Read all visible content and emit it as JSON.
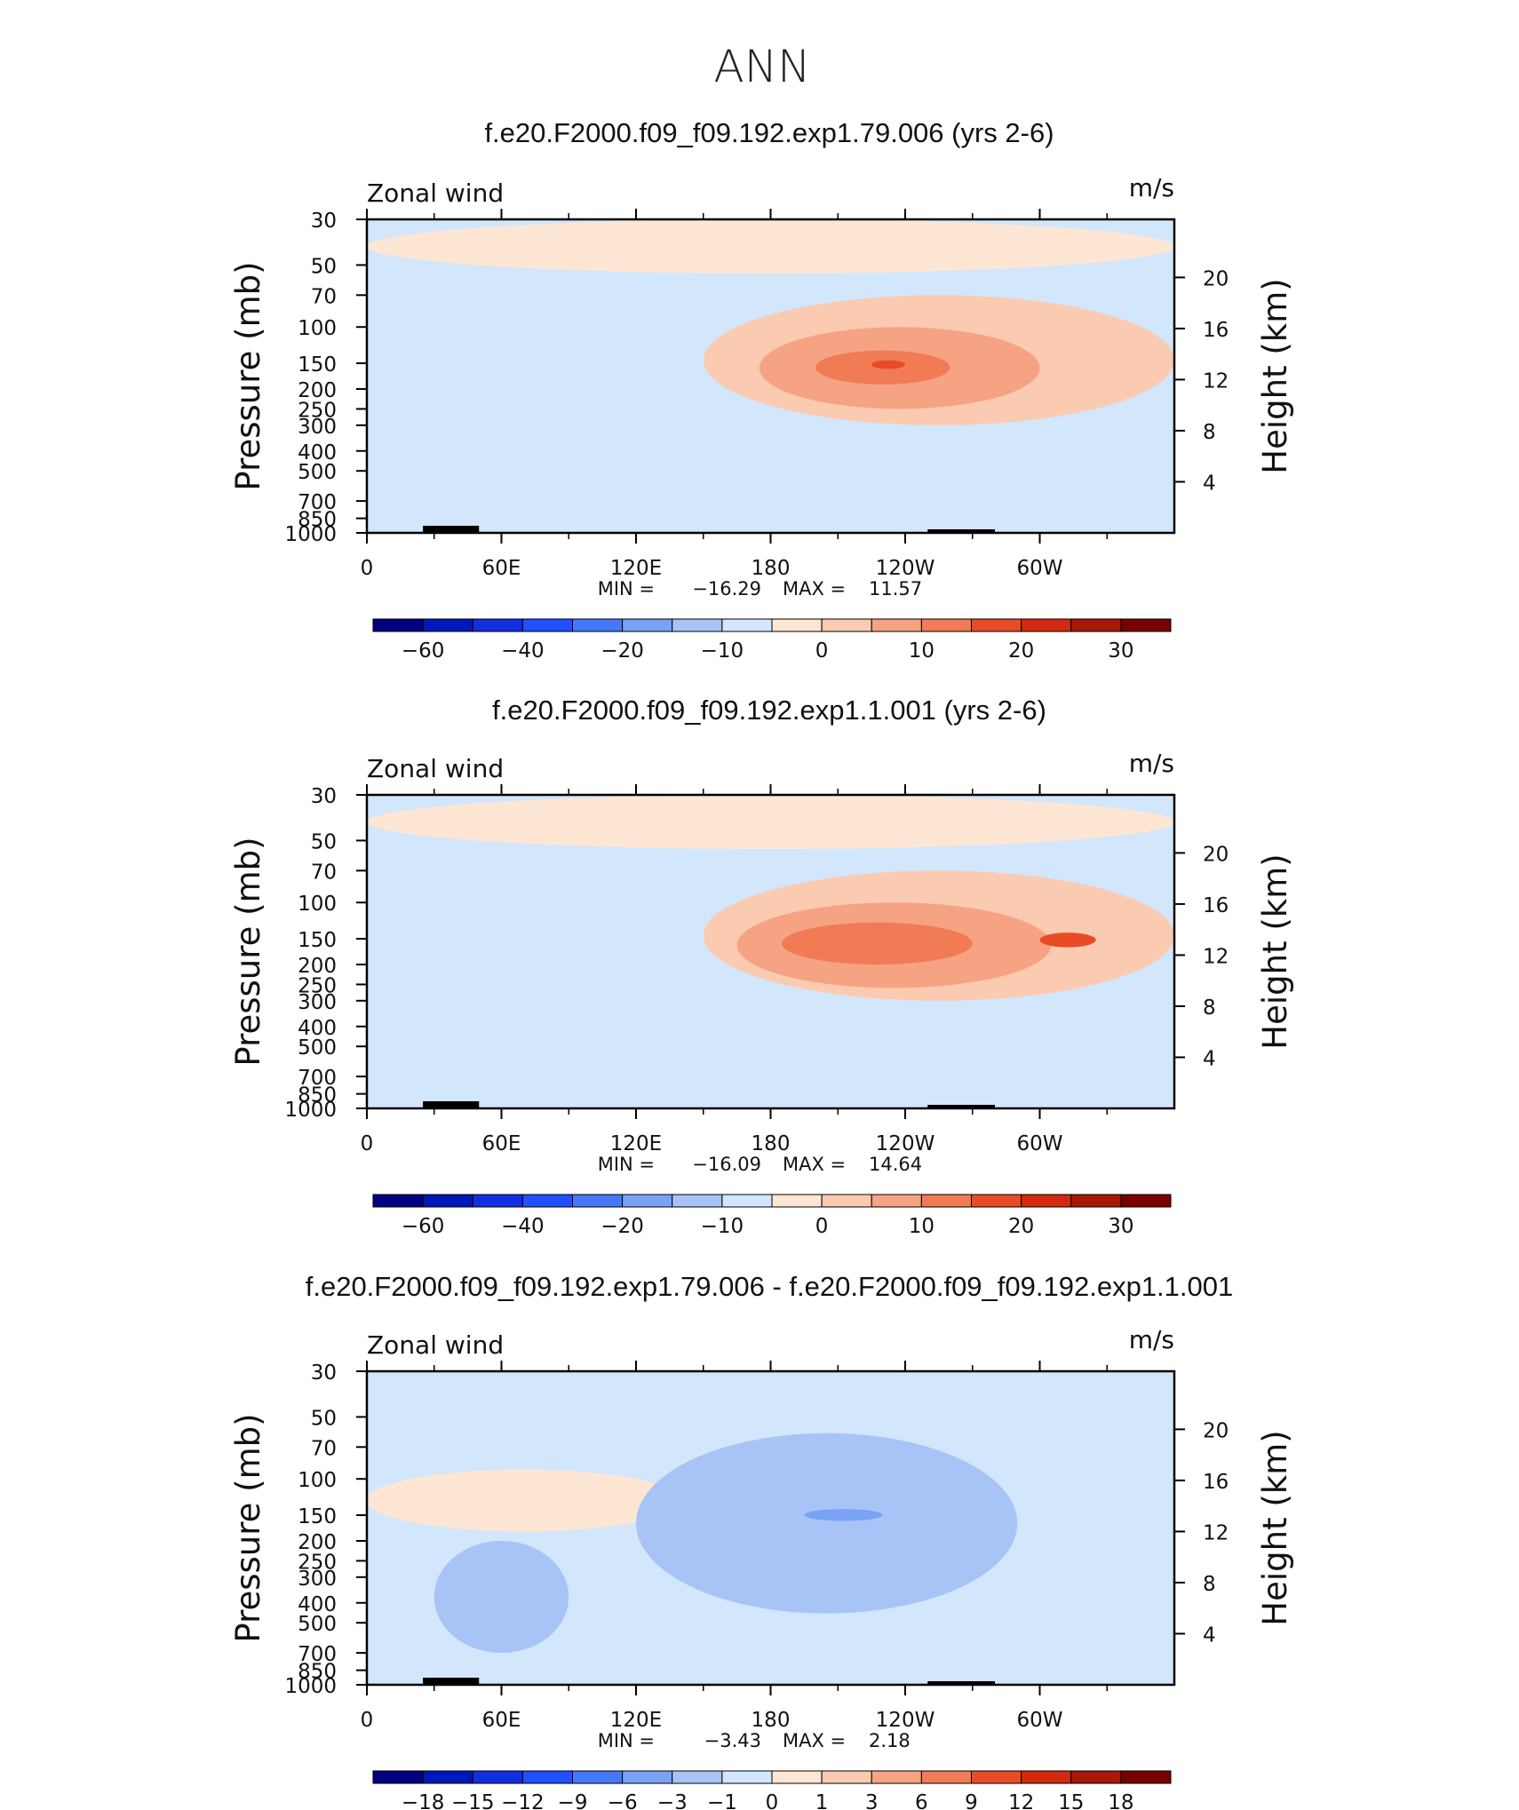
{
  "page_title": "ANN",
  "colors": {
    "field_levels": [
      "#000080",
      "#0018b8",
      "#1030e0",
      "#2050ff",
      "#4478f8",
      "#7aa2f4",
      "#a8c4f6",
      "#d2e6fc",
      "#fde6d3",
      "#fbcbb1",
      "#f6a383",
      "#f07b54",
      "#e84c24",
      "#d22a10",
      "#a81808",
      "#7a0000"
    ],
    "diff_levels": [
      "#000080",
      "#0018b8",
      "#1030e0",
      "#2050ff",
      "#4478f8",
      "#7aa2f4",
      "#a8c4f6",
      "#d2e6fc",
      "#fde6d3",
      "#fbcbb1",
      "#f6a383",
      "#f07b54",
      "#e84c24",
      "#d22a10",
      "#a81808",
      "#7a0000"
    ],
    "terrain": "#000000"
  },
  "chart_data": [
    {
      "type": "heatmap",
      "title": "f.e20.F2000.f09_f09.192.exp1.79.006 (yrs 2-6)",
      "variable": "Zonal wind",
      "units": "m/s",
      "ylabel": "Pressure (mb)",
      "ylabel_right": "Height (km)",
      "xlabel": "",
      "x_ticks": [
        "0",
        "60E",
        "120E",
        "180",
        "120W",
        "60W"
      ],
      "y_ticks": [
        "30",
        "50",
        "70",
        "100",
        "150",
        "200",
        "250",
        "300",
        "400",
        "500",
        "700",
        "850",
        "1000"
      ],
      "y_ticks_right": [
        "20",
        "16",
        "12",
        "8",
        "4"
      ],
      "ylim": [
        1000,
        30
      ],
      "xlim": [
        0,
        360
      ],
      "stats": {
        "min_label": "MIN =",
        "min": "−16.29",
        "max_label": "MAX =",
        "max": "11.57"
      },
      "colorbar_labels": [
        "−60",
        "−40",
        "−20",
        "−10",
        "0",
        "10",
        "20",
        "30"
      ],
      "features": [
        {
          "level": 8,
          "lon": [
            0,
            360
          ],
          "p": [
            30,
            55
          ]
        },
        {
          "level": 9,
          "lon": [
            150,
            360
          ],
          "p": [
            70,
            300
          ]
        },
        {
          "level": 10,
          "lon": [
            175,
            300
          ],
          "p": [
            100,
            250
          ]
        },
        {
          "level": 11,
          "lon": [
            200,
            260
          ],
          "p": [
            130,
            190
          ]
        },
        {
          "level": 12,
          "lon": [
            225,
            240
          ],
          "p": [
            145,
            160
          ]
        }
      ]
    },
    {
      "type": "heatmap",
      "title": "f.e20.F2000.f09_f09.192.exp1.1.001 (yrs 2-6)",
      "variable": "Zonal wind",
      "units": "m/s",
      "ylabel": "Pressure (mb)",
      "ylabel_right": "Height (km)",
      "xlabel": "",
      "x_ticks": [
        "0",
        "60E",
        "120E",
        "180",
        "120W",
        "60W"
      ],
      "y_ticks": [
        "30",
        "50",
        "70",
        "100",
        "150",
        "200",
        "250",
        "300",
        "400",
        "500",
        "700",
        "850",
        "1000"
      ],
      "y_ticks_right": [
        "20",
        "16",
        "12",
        "8",
        "4"
      ],
      "ylim": [
        1000,
        30
      ],
      "xlim": [
        0,
        360
      ],
      "stats": {
        "min_label": "MIN =",
        "min": "−16.09",
        "max_label": "MAX =",
        "max": "14.64"
      },
      "colorbar_labels": [
        "−60",
        "−40",
        "−20",
        "−10",
        "0",
        "10",
        "20",
        "30"
      ],
      "features": [
        {
          "level": 8,
          "lon": [
            0,
            360
          ],
          "p": [
            30,
            55
          ]
        },
        {
          "level": 9,
          "lon": [
            150,
            360
          ],
          "p": [
            70,
            300
          ]
        },
        {
          "level": 10,
          "lon": [
            165,
            305
          ],
          "p": [
            100,
            260
          ]
        },
        {
          "level": 11,
          "lon": [
            185,
            270
          ],
          "p": [
            125,
            200
          ]
        },
        {
          "level": 12,
          "lon": [
            300,
            325
          ],
          "p": [
            140,
            165
          ]
        }
      ]
    },
    {
      "type": "heatmap",
      "title": "f.e20.F2000.f09_f09.192.exp1.79.006 - f.e20.F2000.f09_f09.192.exp1.1.001",
      "variable": "Zonal wind",
      "units": "m/s",
      "ylabel": "Pressure (mb)",
      "ylabel_right": "Height (km)",
      "xlabel": "",
      "x_ticks": [
        "0",
        "60E",
        "120E",
        "180",
        "120W",
        "60W"
      ],
      "y_ticks": [
        "30",
        "50",
        "70",
        "100",
        "150",
        "200",
        "250",
        "300",
        "400",
        "500",
        "700",
        "850",
        "1000"
      ],
      "y_ticks_right": [
        "20",
        "16",
        "12",
        "8",
        "4"
      ],
      "ylim": [
        1000,
        30
      ],
      "xlim": [
        0,
        360
      ],
      "stats": {
        "min_label": "MIN =",
        "min": "−3.43",
        "max_label": "MAX =",
        "max": "2.18"
      },
      "colorbar_labels": [
        "−18",
        "−15",
        "−12",
        "−9",
        "−6",
        "−3",
        "−1",
        "0",
        "1",
        "3",
        "6",
        "9",
        "12",
        "15",
        "18"
      ],
      "features": [
        {
          "level": 8,
          "lon": [
            0,
            140
          ],
          "p": [
            90,
            180
          ]
        },
        {
          "level": 6,
          "lon": [
            120,
            290
          ],
          "p": [
            60,
            450
          ]
        },
        {
          "level": 6,
          "lon": [
            30,
            90
          ],
          "p": [
            200,
            700
          ]
        },
        {
          "level": 5,
          "lon": [
            195,
            230
          ],
          "p": [
            140,
            160
          ]
        }
      ]
    }
  ]
}
